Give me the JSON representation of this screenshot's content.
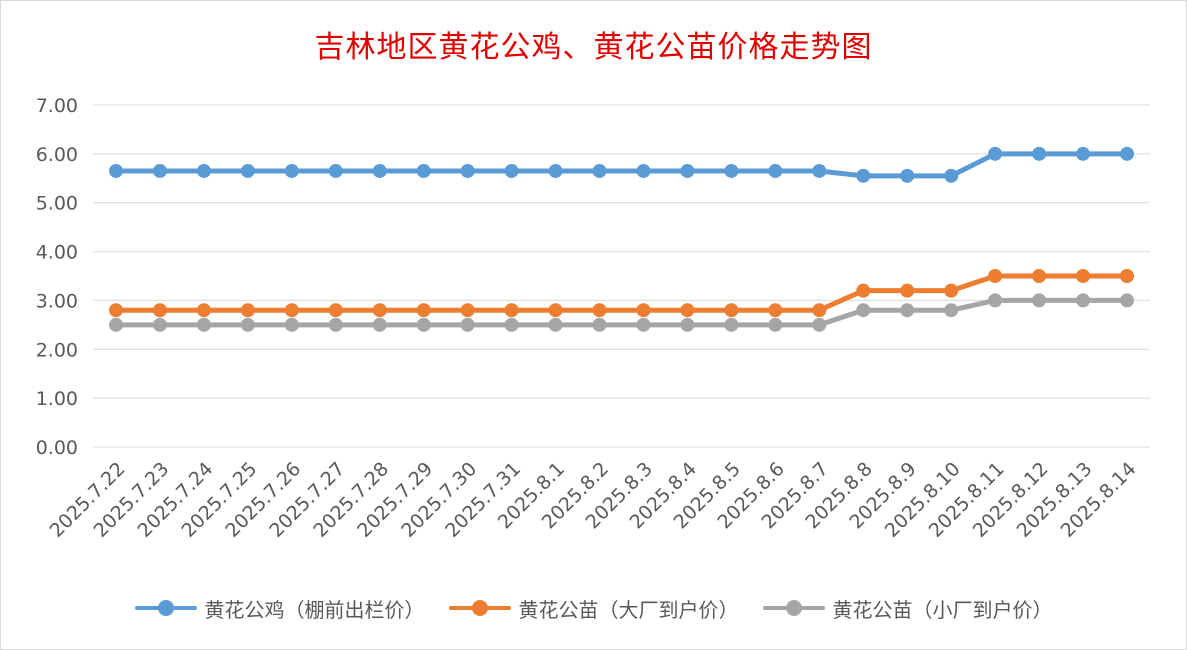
{
  "chart_data": {
    "type": "line",
    "title": "吉林地区黄花公鸡、黄花公苗价格走势图",
    "xlabel": "",
    "ylabel": "",
    "ylim": [
      0,
      7
    ],
    "yticks": [
      "0.00",
      "1.00",
      "2.00",
      "3.00",
      "4.00",
      "5.00",
      "6.00",
      "7.00"
    ],
    "grid": true,
    "legend_position": "bottom",
    "categories": [
      "2025.7.22",
      "2025.7.23",
      "2025.7.24",
      "2025.7.25",
      "2025.7.26",
      "2025.7.27",
      "2025.7.28",
      "2025.7.29",
      "2025.7.30",
      "2025.7.31",
      "2025.8.1",
      "2025.8.2",
      "2025.8.3",
      "2025.8.4",
      "2025.8.5",
      "2025.8.6",
      "2025.8.7",
      "2025.8.8",
      "2025.8.9",
      "2025.8.10",
      "2025.8.11",
      "2025.8.12",
      "2025.8.13",
      "2025.8.14"
    ],
    "series": [
      {
        "name": "黄花公鸡（棚前出栏价）",
        "color": "#5b9bd5",
        "values": [
          5.65,
          5.65,
          5.65,
          5.65,
          5.65,
          5.65,
          5.65,
          5.65,
          5.65,
          5.65,
          5.65,
          5.65,
          5.65,
          5.65,
          5.65,
          5.65,
          5.65,
          5.55,
          5.55,
          5.55,
          6.0,
          6.0,
          6.0,
          6.0
        ]
      },
      {
        "name": "黄花公苗（大厂到户价）",
        "color": "#ed7d31",
        "values": [
          2.8,
          2.8,
          2.8,
          2.8,
          2.8,
          2.8,
          2.8,
          2.8,
          2.8,
          2.8,
          2.8,
          2.8,
          2.8,
          2.8,
          2.8,
          2.8,
          2.8,
          3.2,
          3.2,
          3.2,
          3.5,
          3.5,
          3.5,
          3.5
        ]
      },
      {
        "name": "黄花公苗（小厂到户价）",
        "color": "#a5a5a5",
        "values": [
          2.5,
          2.5,
          2.5,
          2.5,
          2.5,
          2.5,
          2.5,
          2.5,
          2.5,
          2.5,
          2.5,
          2.5,
          2.5,
          2.5,
          2.5,
          2.5,
          2.5,
          2.8,
          2.8,
          2.8,
          3.0,
          3.0,
          3.0,
          3.0
        ]
      }
    ]
  }
}
